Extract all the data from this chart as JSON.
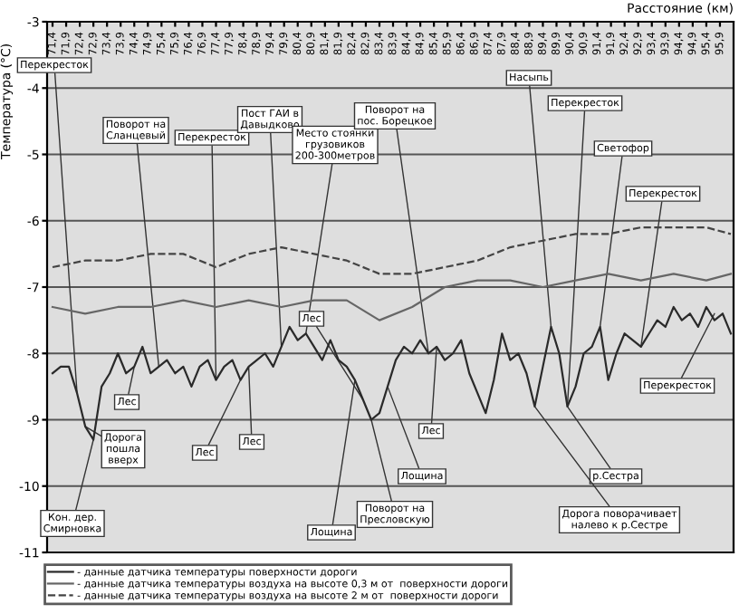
{
  "chart_data": {
    "type": "line",
    "xlabel": "Расстояние (км)",
    "ylabel": "Температура (°C)",
    "xlim": [
      71.2,
      96.4
    ],
    "ylim": [
      -11,
      -3
    ],
    "yticks": [
      -11,
      -10,
      -9,
      -8,
      -7,
      -6,
      -5,
      -4,
      -3
    ],
    "xticks": [
      {
        "value": 71.4,
        "label": "71,4"
      },
      {
        "value": 71.9,
        "label": "71,9"
      },
      {
        "value": 72.4,
        "label": "72,4"
      },
      {
        "value": 72.9,
        "label": "72,9"
      },
      {
        "value": 73.4,
        "label": "73,4"
      },
      {
        "value": 73.9,
        "label": "73,9"
      },
      {
        "value": 74.4,
        "label": "74,4"
      },
      {
        "value": 74.9,
        "label": "74,9"
      },
      {
        "value": 75.4,
        "label": "75,4"
      },
      {
        "value": 75.9,
        "label": "75,9"
      },
      {
        "value": 76.4,
        "label": "76,4"
      },
      {
        "value": 76.9,
        "label": "76,9"
      },
      {
        "value": 77.4,
        "label": "77,4"
      },
      {
        "value": 77.9,
        "label": "77,9"
      },
      {
        "value": 78.4,
        "label": "78,4"
      },
      {
        "value": 78.9,
        "label": "78,9"
      },
      {
        "value": 79.4,
        "label": "79,4"
      },
      {
        "value": 79.9,
        "label": "79,9"
      },
      {
        "value": 80.4,
        "label": "80,4"
      },
      {
        "value": 80.9,
        "label": "80,9"
      },
      {
        "value": 81.4,
        "label": "81,4"
      },
      {
        "value": 81.9,
        "label": "81,9"
      },
      {
        "value": 82.4,
        "label": "82,4"
      },
      {
        "value": 82.9,
        "label": "82,9"
      },
      {
        "value": 83.4,
        "label": "83,4"
      },
      {
        "value": 83.9,
        "label": "83,9"
      },
      {
        "value": 84.4,
        "label": "84,4"
      },
      {
        "value": 84.9,
        "label": "84,9"
      },
      {
        "value": 85.4,
        "label": "85,4"
      },
      {
        "value": 85.9,
        "label": "85,9"
      },
      {
        "value": 86.4,
        "label": "86,4"
      },
      {
        "value": 86.9,
        "label": "86,9"
      },
      {
        "value": 87.4,
        "label": "87,4"
      },
      {
        "value": 87.9,
        "label": "87,9"
      },
      {
        "value": 88.4,
        "label": "88,4"
      },
      {
        "value": 88.9,
        "label": "88,9"
      },
      {
        "value": 89.4,
        "label": "89,4"
      },
      {
        "value": 89.9,
        "label": "89,9"
      },
      {
        "value": 90.4,
        "label": "90,4"
      },
      {
        "value": 90.9,
        "label": "90,9"
      },
      {
        "value": 91.4,
        "label": "91,4"
      },
      {
        "value": 91.9,
        "label": "91,9"
      },
      {
        "value": 92.4,
        "label": "92,4"
      },
      {
        "value": 92.9,
        "label": "92,9"
      },
      {
        "value": 93.4,
        "label": "93,4"
      },
      {
        "value": 93.9,
        "label": "93,9"
      },
      {
        "value": 94.4,
        "label": "94,4"
      },
      {
        "value": 94.9,
        "label": "94,9"
      },
      {
        "value": 95.4,
        "label": "95,4"
      },
      {
        "value": 95.9,
        "label": "95,9"
      }
    ],
    "grid": "y",
    "legend": "bottom",
    "series": [
      {
        "name": "- данные датчика температуры поверхности дороги",
        "color": "#2a2a2a",
        "line_style": "solid",
        "x": [
          71.4,
          71.7,
          72.0,
          72.3,
          72.6,
          72.9,
          73.2,
          73.5,
          73.8,
          74.1,
          74.4,
          74.7,
          75.0,
          75.3,
          75.6,
          75.9,
          76.2,
          76.5,
          76.8,
          77.1,
          77.4,
          77.7,
          78.0,
          78.3,
          78.6,
          78.9,
          79.2,
          79.5,
          79.8,
          80.1,
          80.4,
          80.7,
          81.0,
          81.3,
          81.6,
          81.9,
          82.2,
          82.5,
          82.8,
          83.1,
          83.4,
          83.7,
          84.0,
          84.3,
          84.6,
          84.9,
          85.2,
          85.5,
          85.8,
          86.1,
          86.4,
          86.7,
          87.0,
          87.3,
          87.6,
          87.9,
          88.2,
          88.5,
          88.8,
          89.1,
          89.4,
          89.7,
          90.0,
          90.3,
          90.6,
          90.9,
          91.2,
          91.5,
          91.8,
          92.1,
          92.4,
          92.7,
          93.0,
          93.3,
          93.6,
          93.9,
          94.2,
          94.5,
          94.8,
          95.1,
          95.4,
          95.7,
          96.0,
          96.3
        ],
        "values": [
          -8.3,
          -8.2,
          -8.2,
          -8.6,
          -9.1,
          -9.3,
          -8.5,
          -8.3,
          -8.0,
          -8.3,
          -8.2,
          -7.9,
          -8.3,
          -8.2,
          -8.1,
          -8.3,
          -8.2,
          -8.5,
          -8.2,
          -8.1,
          -8.4,
          -8.2,
          -8.1,
          -8.4,
          -8.2,
          -8.1,
          -8.0,
          -8.2,
          -7.9,
          -7.6,
          -7.8,
          -7.7,
          -7.9,
          -8.1,
          -7.8,
          -8.1,
          -8.2,
          -8.4,
          -8.7,
          -9.0,
          -8.9,
          -8.5,
          -8.1,
          -7.9,
          -8.0,
          -7.8,
          -8.0,
          -7.9,
          -8.1,
          -8.0,
          -7.8,
          -8.3,
          -8.6,
          -8.9,
          -8.4,
          -7.7,
          -8.1,
          -8.0,
          -8.3,
          -8.8,
          -8.2,
          -7.6,
          -8.0,
          -8.8,
          -8.5,
          -8.0,
          -7.9,
          -7.6,
          -8.4,
          -8.0,
          -7.7,
          -7.8,
          -7.9,
          -7.7,
          -7.5,
          -7.6,
          -7.3,
          -7.5,
          -7.4,
          -7.6,
          -7.3,
          -7.5,
          -7.4,
          -7.7
        ]
      },
      {
        "name": "- данные датчика температуры воздуха на высоте 0,3 м от  поверхности дороги",
        "color": "#666666",
        "line_style": "solid",
        "x": [
          71.4,
          72.6,
          73.8,
          75.0,
          76.2,
          77.4,
          78.6,
          79.8,
          81.0,
          82.2,
          83.4,
          84.6,
          85.8,
          87.0,
          88.2,
          89.4,
          90.6,
          91.8,
          93.0,
          94.2,
          95.4,
          96.3
        ],
        "values": [
          -7.3,
          -7.4,
          -7.3,
          -7.3,
          -7.2,
          -7.3,
          -7.2,
          -7.3,
          -7.2,
          -7.2,
          -7.5,
          -7.3,
          -7.0,
          -6.9,
          -6.9,
          -7.0,
          -6.9,
          -6.8,
          -6.9,
          -6.8,
          -6.9,
          -6.8
        ]
      },
      {
        "name": "- данные датчика температуры воздуха на высоте 2 м от  поверхности дороги",
        "color": "#444444",
        "line_style": "dashed",
        "x": [
          71.4,
          72.6,
          73.8,
          75.0,
          76.2,
          77.4,
          78.6,
          79.8,
          81.0,
          82.2,
          83.4,
          84.6,
          85.8,
          87.0,
          88.2,
          89.4,
          90.6,
          91.8,
          93.0,
          94.2,
          95.4,
          96.3
        ],
        "values": [
          -6.7,
          -6.6,
          -6.6,
          -6.5,
          -6.5,
          -6.7,
          -6.5,
          -6.4,
          -6.5,
          -6.6,
          -6.8,
          -6.8,
          -6.7,
          -6.6,
          -6.4,
          -6.3,
          -6.2,
          -6.2,
          -6.1,
          -6.1,
          -6.1,
          -6.2
        ]
      }
    ],
    "annotations": [
      {
        "text": "Перекресток",
        "x": 72.3,
        "y": -8.6
      },
      {
        "text": "Поворот на\nСланцевый",
        "x": 75.3,
        "y": -8.2
      },
      {
        "text": "Перекресток",
        "x": 77.4,
        "y": -8.4
      },
      {
        "text": "Пост ГАИ в\nДавыдково",
        "x": 79.8,
        "y": -7.9
      },
      {
        "text": "Место стоянки\nгрузовиков\n200-300метров",
        "x": 80.7,
        "y": -7.7
      },
      {
        "text": "Поворот на\nпос. Борецкое",
        "x": 85.2,
        "y": -8.0
      },
      {
        "text": "Насыпь",
        "x": 89.7,
        "y": -7.6
      },
      {
        "text": "Перекресток",
        "x": 90.3,
        "y": -8.8
      },
      {
        "text": "Светофор",
        "x": 91.5,
        "y": -7.6
      },
      {
        "text": "Перекресток",
        "x": 93.0,
        "y": -7.9
      },
      {
        "text": "Лес",
        "x": 82.8,
        "y": -8.7
      },
      {
        "text": "Лес",
        "x": 74.4,
        "y": -8.2
      },
      {
        "text": "Дорога\nпошла\nвверх",
        "x": 72.6,
        "y": -9.1
      },
      {
        "text": "Лес",
        "x": 78.3,
        "y": -8.4
      },
      {
        "text": "Лес",
        "x": 78.6,
        "y": -8.2
      },
      {
        "text": "Лес",
        "x": 85.5,
        "y": -7.9
      },
      {
        "text": "Лощина",
        "x": 83.7,
        "y": -8.5
      },
      {
        "text": "р.Сестра",
        "x": 90.3,
        "y": -8.8
      },
      {
        "text": "Перекресток",
        "x": 95.7,
        "y": -7.4
      },
      {
        "text": "Кон. дер.\nСмирновка",
        "x": 72.9,
        "y": -9.3
      },
      {
        "text": "Лощина",
        "x": 82.5,
        "y": -8.4
      },
      {
        "text": "Поворот на\nПресловскую",
        "x": 83.1,
        "y": -9.0
      },
      {
        "text": "Дорога поворачивает\nналево к р.Сестре",
        "x": 89.1,
        "y": -8.8
      }
    ]
  }
}
